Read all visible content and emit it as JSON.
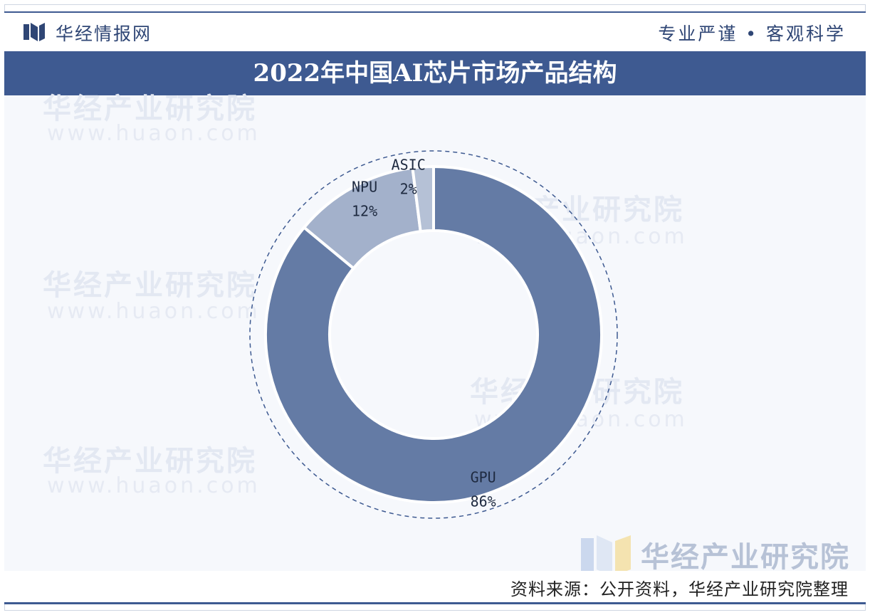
{
  "header": {
    "brand": "华经情报网",
    "slogan": "专业严谨 • 客观科学"
  },
  "title": "2022年中国AI芯片市场产品结构",
  "chart_data": {
    "type": "pie",
    "title": "2022年中国AI芯片市场产品结构",
    "donut": true,
    "slices": [
      {
        "name": "GPU",
        "value": 86,
        "label": "86%"
      },
      {
        "name": "NPU",
        "value": 12,
        "label": "12%"
      },
      {
        "name": "ASIC",
        "value": 2,
        "label": "2%"
      }
    ]
  },
  "colors": {
    "accent": "#3e5a91",
    "gpu": "#647ba5",
    "npu": "#a3b1cb",
    "asic": "#b5c1d6"
  },
  "watermark": {
    "name": "华经产业研究院",
    "site": "www.huaon.com"
  },
  "footer": {
    "source": "资料来源：公开资料，华经产业研究院整理"
  }
}
